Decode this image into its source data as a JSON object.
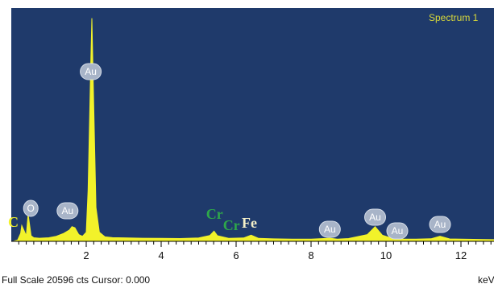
{
  "chart_data": {
    "type": "area",
    "title": "Spectrum 1",
    "xlabel": "keV",
    "xlim": [
      0,
      13
    ],
    "ylim": [
      0,
      20596
    ],
    "x_ticks": [
      2,
      4,
      6,
      8,
      10,
      12
    ],
    "footer": "Full Scale 20596 cts Cursor: 0.000",
    "colors": {
      "background": "#1f3a6b",
      "spectrum": "#f2f22a",
      "badge": "#a8b4c8"
    },
    "series": [
      {
        "x": [
          0.05,
          0.17,
          0.25,
          0.28,
          0.4,
          0.45,
          0.53,
          0.6,
          0.75,
          1.0,
          1.2,
          1.4,
          1.55,
          1.62,
          1.7,
          1.8,
          1.9,
          2.0,
          2.05,
          2.12,
          2.15,
          2.2,
          2.26,
          2.35,
          2.5,
          2.7,
          3.0,
          3.5,
          4.0,
          4.5,
          5.0,
          5.3,
          5.41,
          5.5,
          5.8,
          6.2,
          6.4,
          6.6,
          7.0,
          7.5,
          8.0,
          8.5,
          8.7,
          9.0,
          9.5,
          9.71,
          9.9,
          10.2,
          10.5,
          10.8,
          11.2,
          11.44,
          11.7,
          12.0,
          12.5,
          13.0
        ],
        "y": [
          0,
          120,
          700,
          1400,
          500,
          2400,
          500,
          320,
          280,
          320,
          450,
          700,
          1000,
          1300,
          1200,
          600,
          450,
          800,
          4500,
          15600,
          19700,
          12000,
          3000,
          800,
          400,
          330,
          310,
          280,
          260,
          250,
          300,
          520,
          900,
          500,
          270,
          300,
          550,
          260,
          220,
          200,
          190,
          280,
          190,
          250,
          600,
          1300,
          550,
          220,
          200,
          190,
          230,
          450,
          210,
          190,
          170,
          150
        ]
      }
    ],
    "peak_labels": [
      {
        "label": "C",
        "x": 0.28,
        "style": "plain",
        "color": "#f2f22a"
      },
      {
        "label": "O",
        "x": 0.52,
        "style": "badge"
      },
      {
        "label": "Au",
        "x": 1.5,
        "style": "badge"
      },
      {
        "label": "Au",
        "x": 2.12,
        "style": "badge"
      },
      {
        "label": "Cr",
        "x": 5.2,
        "style": "plain",
        "color": "#2ea84a"
      },
      {
        "label": "Cr",
        "x": 5.65,
        "style": "plain",
        "color": "#2ea84a"
      },
      {
        "label": "Fe",
        "x": 6.15,
        "style": "plain",
        "color": "#f5f0c8"
      },
      {
        "label": "Au",
        "x": 8.5,
        "style": "badge"
      },
      {
        "label": "Au",
        "x": 9.71,
        "style": "badge"
      },
      {
        "label": "Au",
        "x": 10.3,
        "style": "badge"
      },
      {
        "label": "Au",
        "x": 11.44,
        "style": "badge"
      }
    ]
  }
}
